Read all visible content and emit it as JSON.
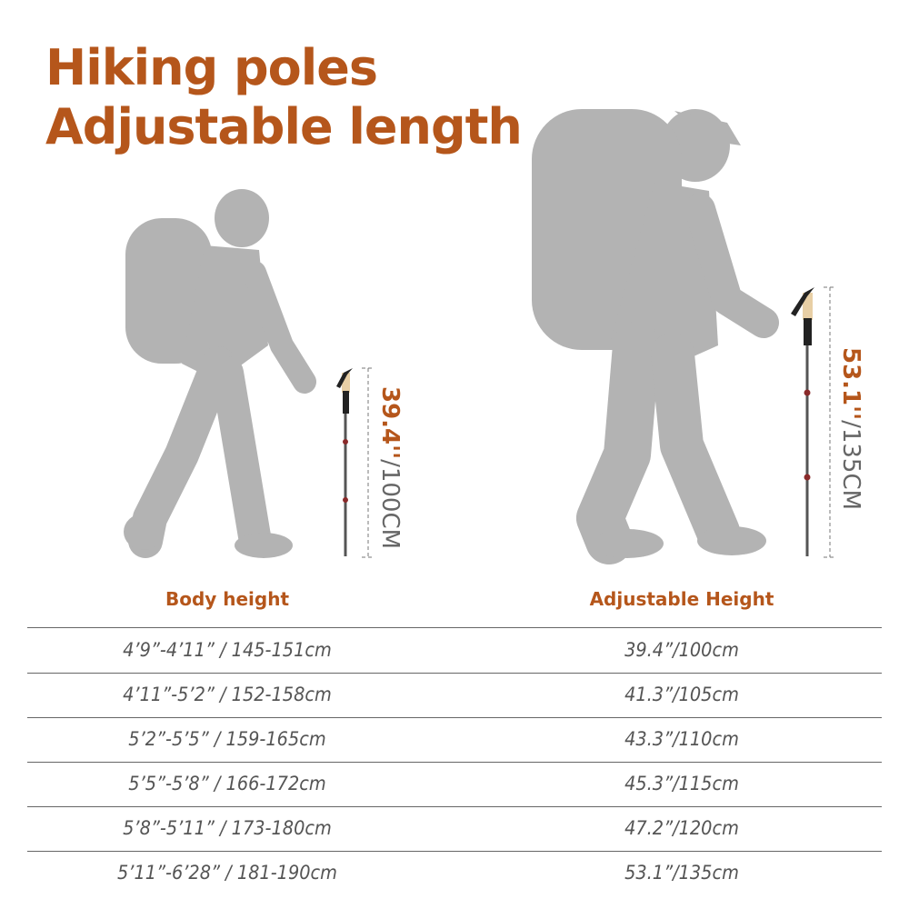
{
  "title": {
    "line1": "Hiking poles",
    "line2": "Adjustable length"
  },
  "colors": {
    "accent": "#b5561b",
    "silhouette": "#b3b3b3",
    "text": "#555555"
  },
  "figures": [
    {
      "length_in": "39.4''",
      "length_cm": "/100CM"
    },
    {
      "length_in": "53.1''",
      "length_cm": "/135CM"
    }
  ],
  "table": {
    "headers": [
      "Body height",
      "Adjustable Height"
    ],
    "rows": [
      [
        "4’9”-4’11” / 145-151cm",
        "39.4”/100cm"
      ],
      [
        "4’11”-5’2” / 152-158cm",
        "41.3”/105cm"
      ],
      [
        "5’2”-5’5” / 159-165cm",
        "43.3”/110cm"
      ],
      [
        "5’5”-5’8” / 166-172cm",
        "45.3”/115cm"
      ],
      [
        "5’8”-5’11” / 173-180cm",
        "47.2”/120cm"
      ],
      [
        "5’11”-6’28” / 181-190cm",
        "53.1”/135cm"
      ]
    ]
  }
}
